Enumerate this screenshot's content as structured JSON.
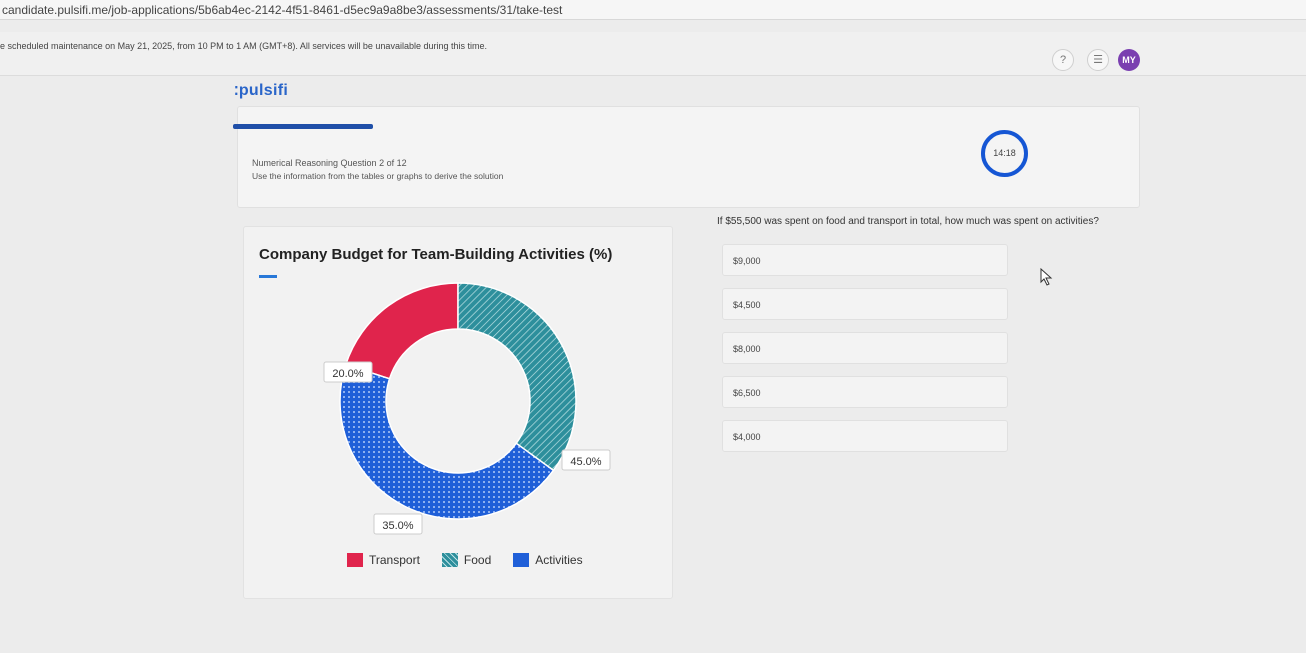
{
  "browser": {
    "url": "candidate.pulsifi.me/job-applications/5b6ab4ec-2142-4f51-8461-d5ec9a9a8be3/assessments/31/take-test"
  },
  "banner": {
    "text": "e scheduled maintenance on May 21, 2025, from 10 PM to 1 AM (GMT+8). All services will be unavailable during this time."
  },
  "header": {
    "logo": "pulsifi",
    "help_icon": "?",
    "menu_icon": "☰",
    "avatar_initials": "MY"
  },
  "assessment": {
    "question_counter": "Numerical Reasoning Question 2 of 12",
    "instruction": "Use the information from the tables or graphs to derive the solution",
    "timer": "14:18",
    "question_text": "If $55,500 was spent on food and transport in total, how much was spent on activities?",
    "options": [
      "$9,000",
      "$4,500",
      "$8,000",
      "$6,500",
      "$4,000"
    ]
  },
  "chart_data": {
    "type": "pie",
    "title": "Company Budget for Team-Building Activities (%)",
    "categories": [
      "Transport",
      "Food",
      "Activities"
    ],
    "values": [
      20.0,
      35.0,
      45.0
    ],
    "labels": [
      "20.0%",
      "35.0%",
      "45.0%"
    ],
    "colors": [
      "#e0244c",
      "#2d8f9c",
      "#1f5fd8"
    ],
    "legend": "bottom",
    "donut": true
  }
}
